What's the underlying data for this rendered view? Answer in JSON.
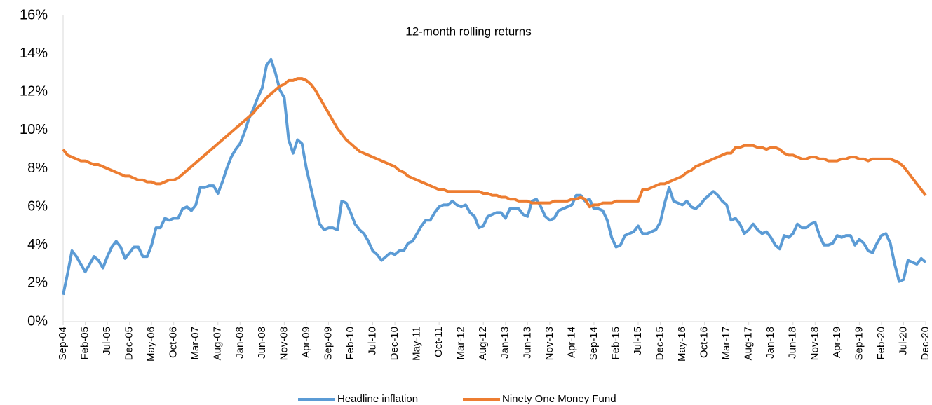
{
  "chart_data": {
    "type": "line",
    "title": "12-month rolling returns",
    "categories": [
      "Sep-04",
      null,
      null,
      null,
      null,
      "Feb-05",
      null,
      null,
      null,
      null,
      "Jul-05",
      null,
      null,
      null,
      null,
      "Dec-05",
      null,
      null,
      null,
      null,
      "May-06",
      null,
      null,
      null,
      null,
      "Oct-06",
      null,
      null,
      null,
      null,
      "Mar-07",
      null,
      null,
      null,
      null,
      "Aug-07",
      null,
      null,
      null,
      null,
      "Jan-08",
      null,
      null,
      null,
      null,
      "Jun-08",
      null,
      null,
      null,
      null,
      "Nov-08",
      null,
      null,
      null,
      null,
      "Apr-09",
      null,
      null,
      null,
      null,
      "Sep-09",
      null,
      null,
      null,
      null,
      "Feb-10",
      null,
      null,
      null,
      null,
      "Jul-10",
      null,
      null,
      null,
      null,
      "Dec-10",
      null,
      null,
      null,
      null,
      "May-11",
      null,
      null,
      null,
      null,
      "Oct-11",
      null,
      null,
      null,
      null,
      "Mar-12",
      null,
      null,
      null,
      null,
      "Aug-12",
      null,
      null,
      null,
      null,
      "Jan-13",
      null,
      null,
      null,
      null,
      "Jun-13",
      null,
      null,
      null,
      null,
      "Nov-13",
      null,
      null,
      null,
      null,
      "Apr-14",
      null,
      null,
      null,
      null,
      "Sep-14",
      null,
      null,
      null,
      null,
      "Feb-15",
      null,
      null,
      null,
      null,
      "Jul-15",
      null,
      null,
      null,
      null,
      "Dec-15",
      null,
      null,
      null,
      null,
      "May-16",
      null,
      null,
      null,
      null,
      "Oct-16",
      null,
      null,
      null,
      null,
      "Mar-17",
      null,
      null,
      null,
      null,
      "Aug-17",
      null,
      null,
      null,
      null,
      "Jan-18",
      null,
      null,
      null,
      null,
      "Jun-18",
      null,
      null,
      null,
      null,
      "Nov-18",
      null,
      null,
      null,
      null,
      "Apr-19",
      null,
      null,
      null,
      null,
      "Sep-19",
      null,
      null,
      null,
      null,
      "Feb-20",
      null,
      null,
      null,
      null,
      "Jul-20",
      null,
      null,
      null,
      null,
      "Dec-20"
    ],
    "series": [
      {
        "name": "Headline inflation",
        "color": "#5b9bd5",
        "values": [
          1.4,
          2.5,
          3.7,
          3.4,
          3.0,
          2.6,
          3.0,
          3.4,
          3.2,
          2.8,
          3.4,
          3.9,
          4.2,
          3.9,
          3.3,
          3.6,
          3.9,
          3.9,
          3.4,
          3.4,
          4.0,
          4.9,
          4.9,
          5.4,
          5.3,
          5.4,
          5.4,
          5.9,
          6.0,
          5.8,
          6.1,
          7.0,
          7.0,
          7.1,
          7.1,
          6.7,
          7.3,
          8.0,
          8.6,
          9.0,
          9.3,
          9.9,
          10.6,
          11.1,
          11.7,
          12.2,
          13.4,
          13.7,
          13.0,
          12.1,
          11.7,
          9.5,
          8.8,
          9.5,
          9.3,
          8.0,
          7.0,
          6.0,
          5.1,
          4.8,
          4.9,
          4.9,
          4.8,
          6.3,
          6.2,
          5.7,
          5.1,
          4.8,
          4.6,
          4.2,
          3.7,
          3.5,
          3.2,
          3.4,
          3.6,
          3.5,
          3.7,
          3.7,
          4.1,
          4.2,
          4.6,
          5.0,
          5.3,
          5.3,
          5.7,
          6.0,
          6.1,
          6.1,
          6.3,
          6.1,
          6.0,
          6.1,
          5.7,
          5.5,
          4.9,
          5.0,
          5.5,
          5.6,
          5.7,
          5.7,
          5.4,
          5.9,
          5.9,
          5.9,
          5.6,
          5.5,
          6.3,
          6.4,
          6.0,
          5.5,
          5.3,
          5.4,
          5.8,
          5.9,
          6.0,
          6.1,
          6.6,
          6.6,
          6.3,
          6.4,
          5.9,
          5.9,
          5.8,
          5.3,
          4.4,
          3.9,
          4.0,
          4.5,
          4.6,
          4.7,
          5.0,
          4.6,
          4.6,
          4.7,
          4.8,
          5.2,
          6.2,
          7.0,
          6.3,
          6.2,
          6.1,
          6.3,
          6.0,
          5.9,
          6.1,
          6.4,
          6.6,
          6.8,
          6.6,
          6.3,
          6.1,
          5.3,
          5.4,
          5.1,
          4.6,
          4.8,
          5.1,
          4.8,
          4.6,
          4.7,
          4.4,
          4.0,
          3.8,
          4.5,
          4.4,
          4.6,
          5.1,
          4.9,
          4.9,
          5.1,
          5.2,
          4.5,
          4.0,
          4.0,
          4.1,
          4.5,
          4.4,
          4.5,
          4.5,
          4.0,
          4.3,
          4.1,
          3.7,
          3.6,
          4.1,
          4.5,
          4.6,
          4.1,
          3.0,
          2.1,
          2.2,
          3.2,
          3.1,
          3.0,
          3.3,
          3.1
        ]
      },
      {
        "name": "Ninety One Money Fund",
        "color": "#ed7d31",
        "values": [
          9.0,
          8.7,
          8.6,
          8.5,
          8.4,
          8.4,
          8.3,
          8.2,
          8.2,
          8.1,
          8.0,
          7.9,
          7.8,
          7.7,
          7.6,
          7.6,
          7.5,
          7.4,
          7.4,
          7.3,
          7.3,
          7.2,
          7.2,
          7.3,
          7.4,
          7.4,
          7.5,
          7.7,
          7.9,
          8.1,
          8.3,
          8.5,
          8.7,
          8.9,
          9.1,
          9.3,
          9.5,
          9.7,
          9.9,
          10.1,
          10.3,
          10.5,
          10.7,
          10.9,
          11.2,
          11.4,
          11.7,
          11.9,
          12.1,
          12.3,
          12.4,
          12.6,
          12.6,
          12.7,
          12.7,
          12.6,
          12.4,
          12.1,
          11.7,
          11.3,
          10.9,
          10.5,
          10.1,
          9.8,
          9.5,
          9.3,
          9.1,
          8.9,
          8.8,
          8.7,
          8.6,
          8.5,
          8.4,
          8.3,
          8.2,
          8.1,
          7.9,
          7.8,
          7.6,
          7.5,
          7.4,
          7.3,
          7.2,
          7.1,
          7.0,
          6.9,
          6.9,
          6.8,
          6.8,
          6.8,
          6.8,
          6.8,
          6.8,
          6.8,
          6.8,
          6.7,
          6.7,
          6.6,
          6.6,
          6.5,
          6.5,
          6.4,
          6.4,
          6.3,
          6.3,
          6.3,
          6.2,
          6.2,
          6.2,
          6.2,
          6.2,
          6.3,
          6.3,
          6.3,
          6.3,
          6.4,
          6.4,
          6.5,
          6.4,
          6.0,
          6.1,
          6.1,
          6.2,
          6.2,
          6.2,
          6.3,
          6.3,
          6.3,
          6.3,
          6.3,
          6.3,
          6.9,
          6.9,
          7.0,
          7.1,
          7.2,
          7.2,
          7.3,
          7.4,
          7.5,
          7.6,
          7.8,
          7.9,
          8.1,
          8.2,
          8.3,
          8.4,
          8.5,
          8.6,
          8.7,
          8.8,
          8.8,
          9.1,
          9.1,
          9.2,
          9.2,
          9.2,
          9.1,
          9.1,
          9.0,
          9.1,
          9.1,
          9.0,
          8.8,
          8.7,
          8.7,
          8.6,
          8.5,
          8.5,
          8.6,
          8.6,
          8.5,
          8.5,
          8.4,
          8.4,
          8.4,
          8.5,
          8.5,
          8.6,
          8.6,
          8.5,
          8.5,
          8.4,
          8.5,
          8.5,
          8.5,
          8.5,
          8.5,
          8.4,
          8.3,
          8.1,
          7.8,
          7.5,
          7.2,
          6.9,
          6.6
        ]
      }
    ],
    "ylim": [
      0,
      16
    ],
    "yticks": [
      {
        "value": 0,
        "label": "0%"
      },
      {
        "value": 2,
        "label": "2%"
      },
      {
        "value": 4,
        "label": "4%"
      },
      {
        "value": 6,
        "label": "6%"
      },
      {
        "value": 8,
        "label": "8%"
      },
      {
        "value": 10,
        "label": "10%"
      },
      {
        "value": 12,
        "label": "12%"
      },
      {
        "value": 14,
        "label": "14%"
      },
      {
        "value": 16,
        "label": "16%"
      }
    ],
    "grid": false,
    "legend": "bottom"
  }
}
